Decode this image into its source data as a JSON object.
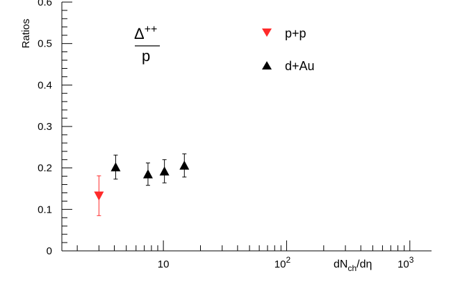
{
  "chart_data": {
    "type": "scatter",
    "title": "",
    "xlabel": "dNch/dη",
    "xlabel_parts": {
      "base": "dN",
      "sub": "ch",
      "tail": "/dη"
    },
    "ylabel": "Ratios",
    "x_scale": "log",
    "xlim": [
      1.5,
      1500
    ],
    "ylim": [
      0,
      0.6
    ],
    "grid": false,
    "yticks": [
      {
        "value": 0,
        "label": "0"
      },
      {
        "value": 0.1,
        "label": "0.1"
      },
      {
        "value": 0.2,
        "label": "0.2"
      },
      {
        "value": 0.3,
        "label": "0.3"
      },
      {
        "value": 0.4,
        "label": "0.4"
      },
      {
        "value": 0.5,
        "label": "0.5"
      },
      {
        "value": 0.6,
        "label": "0.6"
      }
    ],
    "xticks": [
      {
        "value": 10,
        "label": "10",
        "exp": ""
      },
      {
        "value": 100,
        "label": "10",
        "exp": "2"
      },
      {
        "value": 1000,
        "label": "10",
        "exp": "3"
      }
    ],
    "annotation": {
      "numerator": "Δ",
      "numerator_sup": "++",
      "denominator": "p"
    },
    "legend_position": "top-right",
    "series": [
      {
        "name": "p+p",
        "color": "#ff2a2a",
        "marker": "triangle-down",
        "points": [
          {
            "x": 3.0,
            "y": 0.133,
            "err": 0.048
          }
        ]
      },
      {
        "name": "d+Au",
        "color": "#000000",
        "marker": "triangle-up",
        "points": [
          {
            "x": 4.1,
            "y": 0.202,
            "err": 0.029
          },
          {
            "x": 7.5,
            "y": 0.185,
            "err": 0.027
          },
          {
            "x": 10.2,
            "y": 0.192,
            "err": 0.028
          },
          {
            "x": 14.8,
            "y": 0.206,
            "err": 0.028
          }
        ]
      }
    ]
  }
}
